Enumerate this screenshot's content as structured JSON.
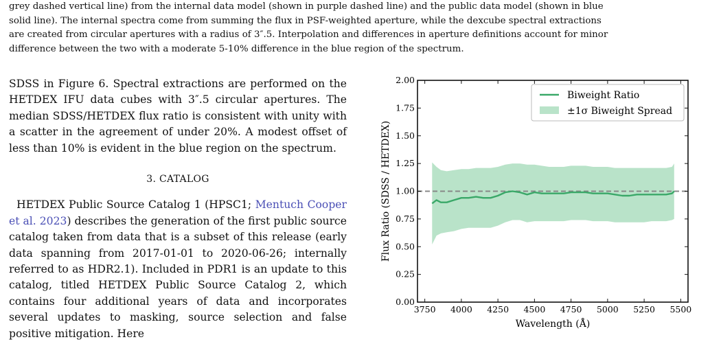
{
  "caption": {
    "line1": "grey dashed vertical line) from the internal data model (shown in purple dashed line) and the public data model (shown in blue",
    "line2": "solid line). The internal spectra come from summing the flux in PSF-weighted aperture, while the dexcube spectral extractions",
    "line3": "are created from circular apertures with a radius of 3″.5. Interpolation and differences in aperture definitions account for minor",
    "line4": "difference between the two with a moderate 5-10% difference in the blue region of the spectrum."
  },
  "body": {
    "para1": "SDSS in Figure 6. Spectral extractions are performed on the HETDEX IFU data cubes with 3″.5 circular apertures. The median SDSS/HETDEX flux ratio is consistent with unity with a scatter in the agreement of under 20%. A modest offset of less than 10% is evident in the blue region on the spectrum.",
    "section_heading": "3. CATALOG",
    "para2_start": "HETDEX Public Source Catalog 1 (HPSC1; ",
    "para2_cite": "Mentuch Cooper et al. 2023",
    "para2_end": ") describes the generation of the first public source catalog taken from data that is a subset of this release (early data spanning from 2017-01-01 to 2020-06-26; internally referred to as HDR2.1). Included in PDR1 is an update to this catalog, titled HETDEX Public Source Catalog 2, which contains four additional years of data and incorporates several updates to masking, source selection and false positive mitigation. Here"
  },
  "chart_data": {
    "type": "line",
    "xlabel": "Wavelength (Å)",
    "ylabel": "Flux Ratio (SDSS / HETDEX)",
    "xlim": [
      3700,
      5550
    ],
    "ylim": [
      0.0,
      2.0
    ],
    "xticks": [
      "3750",
      "4000",
      "4250",
      "4500",
      "4750",
      "5000",
      "5250",
      "5500"
    ],
    "xtick_values": [
      3750,
      4000,
      4250,
      4500,
      4750,
      5000,
      5250,
      5500
    ],
    "yticks": [
      "0.00",
      "0.25",
      "0.50",
      "0.75",
      "1.00",
      "1.25",
      "1.50",
      "1.75",
      "2.00"
    ],
    "ytick_values": [
      0.0,
      0.25,
      0.5,
      0.75,
      1.0,
      1.25,
      1.5,
      1.75,
      2.0
    ],
    "reference_line": 1.0,
    "legend_position": "top-right",
    "colors": {
      "line": "#3aa868",
      "band": "#b9e3c9",
      "reference": "#888888"
    },
    "x": [
      3800,
      3830,
      3860,
      3900,
      3950,
      4000,
      4050,
      4100,
      4150,
      4200,
      4250,
      4300,
      4350,
      4400,
      4450,
      4500,
      4550,
      4600,
      4650,
      4700,
      4750,
      4800,
      4850,
      4900,
      4950,
      5000,
      5050,
      5100,
      5150,
      5200,
      5250,
      5300,
      5350,
      5400,
      5440,
      5455
    ],
    "series": [
      {
        "name": "Biweight Ratio",
        "values": [
          0.89,
          0.92,
          0.9,
          0.9,
          0.92,
          0.94,
          0.94,
          0.95,
          0.94,
          0.94,
          0.96,
          0.99,
          1.0,
          0.99,
          0.97,
          0.99,
          0.98,
          0.98,
          0.98,
          0.98,
          0.99,
          0.99,
          0.99,
          0.98,
          0.98,
          0.98,
          0.97,
          0.96,
          0.96,
          0.97,
          0.97,
          0.97,
          0.97,
          0.97,
          0.98,
          1.0
        ]
      },
      {
        "name": "±1σ Biweight Spread",
        "upper": [
          1.26,
          1.22,
          1.19,
          1.18,
          1.19,
          1.2,
          1.2,
          1.21,
          1.21,
          1.21,
          1.22,
          1.24,
          1.25,
          1.25,
          1.24,
          1.24,
          1.23,
          1.22,
          1.22,
          1.22,
          1.23,
          1.23,
          1.23,
          1.22,
          1.22,
          1.22,
          1.21,
          1.21,
          1.21,
          1.21,
          1.21,
          1.21,
          1.21,
          1.21,
          1.22,
          1.25
        ],
        "lower": [
          0.52,
          0.6,
          0.62,
          0.63,
          0.64,
          0.66,
          0.67,
          0.67,
          0.67,
          0.67,
          0.69,
          0.72,
          0.74,
          0.74,
          0.72,
          0.73,
          0.73,
          0.73,
          0.73,
          0.73,
          0.74,
          0.74,
          0.74,
          0.73,
          0.73,
          0.73,
          0.72,
          0.72,
          0.72,
          0.72,
          0.72,
          0.73,
          0.73,
          0.73,
          0.74,
          0.75
        ]
      }
    ]
  }
}
